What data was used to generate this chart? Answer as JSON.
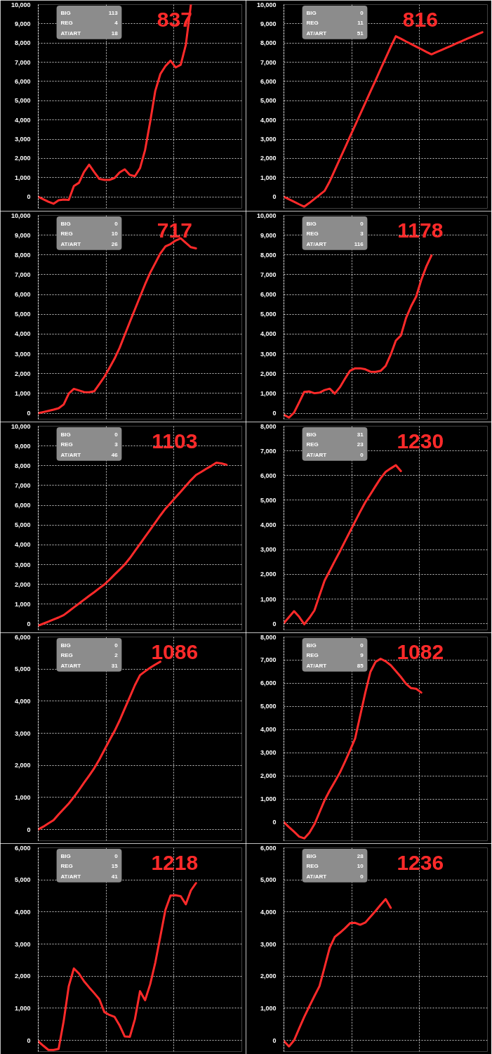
{
  "chart_data": [
    {
      "type": "line",
      "title": "837",
      "annotations": [
        "BIG",
        "113",
        "REG",
        "4",
        "AT/ART",
        "18"
      ],
      "categories": [
        null,
        null,
        null,
        null,
        null,
        null,
        null,
        null,
        null,
        null,
        null,
        null,
        null,
        null,
        null,
        null,
        null,
        null,
        null,
        null,
        null,
        null,
        null,
        null,
        null,
        null,
        null,
        null,
        null,
        null,
        null,
        null,
        null,
        null,
        null,
        null,
        null,
        null,
        null,
        null,
        null
      ],
      "ylim": [
        -600,
        10000
      ],
      "yticks": [
        0,
        {
          "value": 1000,
          "label": "1,000"
        },
        {
          "value": 2000,
          "label": "2,000"
        },
        {
          "value": 3000,
          "label": "3,000"
        },
        {
          "value": 4000,
          "label": "4,000"
        },
        {
          "value": 5000,
          "label": "5,000"
        },
        {
          "value": 6000,
          "label": "6,000"
        },
        {
          "value": 7000,
          "label": "7,000"
        },
        {
          "value": 8000,
          "label": "8,000"
        },
        {
          "value": 9000,
          "label": "9,000"
        },
        {
          "value": 10000,
          "label": "10,000"
        }
      ],
      "grid": true,
      "tick_labels": "y",
      "series": [
        {
          "color": "#ff2a2a",
          "values": [
            0,
            -130,
            -260,
            -360,
            -180,
            -140,
            -160,
            560,
            730,
            1300,
            1670,
            1290,
            930,
            880,
            880,
            980,
            1270,
            1430,
            1140,
            1070,
            1490,
            2440,
            3910,
            5510,
            6390,
            6800,
            7080,
            6730,
            6870,
            7900,
            10000,
            null,
            null,
            null,
            null,
            null,
            null,
            null,
            null,
            null,
            null
          ]
        }
      ]
    },
    {
      "type": "line",
      "title": "816",
      "annotations": [
        "BIG",
        "0",
        "REG",
        "11",
        "AT/ART",
        "51"
      ],
      "categories": [
        null,
        null,
        null,
        null,
        null,
        null,
        null,
        null,
        null,
        null,
        null,
        null,
        null,
        null,
        null,
        null,
        null,
        null,
        null,
        null,
        null,
        null,
        null,
        null,
        null,
        null,
        null,
        null,
        null,
        null,
        null,
        null,
        null,
        null,
        null,
        null,
        null,
        null,
        null,
        null,
        null
      ],
      "ylim": [
        -600,
        10000
      ],
      "yticks": [
        0,
        {
          "value": 1000,
          "label": "1,000"
        },
        {
          "value": 2000,
          "label": "2,000"
        },
        {
          "value": 3000,
          "label": "3,000"
        },
        {
          "value": 4000,
          "label": "4,000"
        },
        {
          "value": 5000,
          "label": "5,000"
        },
        {
          "value": 6000,
          "label": "6,000"
        },
        {
          "value": 7000,
          "label": "7,000"
        },
        {
          "value": 8000,
          "label": "8,000"
        },
        {
          "value": 9000,
          "label": "9,000"
        },
        {
          "value": 10000,
          "label": "10,000"
        }
      ],
      "grid": true,
      "tick_labels": "y",
      "series": [
        {
          "color": "#ff2a2a",
          "values": [
            0,
            -130,
            -260,
            -390,
            -510,
            -320,
            -110,
            100,
            310,
            800,
            1390,
            1970,
            2550,
            3140,
            3720,
            4300,
            4890,
            5470,
            6050,
            6640,
            7220,
            7800,
            8350,
            8220,
            8080,
            7950,
            7810,
            7680,
            7540,
            7410,
            7530,
            7640,
            7760,
            7870,
            7990,
            8100,
            8220,
            8330,
            8450,
            8560,
            null
          ]
        }
      ]
    },
    {
      "type": "line",
      "title": "717",
      "annotations": [
        "BIG",
        "0",
        "REG",
        "10",
        "AT/ART",
        "26"
      ],
      "categories": [
        null,
        null,
        null,
        null,
        null,
        null,
        null,
        null,
        null,
        null,
        null,
        null,
        null,
        null,
        null,
        null,
        null,
        null,
        null,
        null,
        null,
        null,
        null,
        null,
        null,
        null,
        null,
        null,
        null,
        null,
        null,
        null,
        null,
        null,
        null,
        null,
        null,
        null,
        null,
        null,
        null
      ],
      "ylim": [
        -300,
        10000
      ],
      "yticks": [
        0,
        {
          "value": 1000,
          "label": "1,000"
        },
        {
          "value": 2000,
          "label": "2,000"
        },
        {
          "value": 3000,
          "label": "3,000"
        },
        {
          "value": 4000,
          "label": "4,000"
        },
        {
          "value": 5000,
          "label": "5,000"
        },
        {
          "value": 6000,
          "label": "6,000"
        },
        {
          "value": 7000,
          "label": "7,000"
        },
        {
          "value": 8000,
          "label": "8,000"
        },
        {
          "value": 9000,
          "label": "9,000"
        },
        {
          "value": 10000,
          "label": "10,000"
        }
      ],
      "grid": true,
      "tick_labels": "y",
      "series": [
        {
          "color": "#ff2a2a",
          "values": [
            0,
            60,
            120,
            180,
            250,
            440,
            990,
            1230,
            1150,
            1070,
            1060,
            1110,
            1470,
            1840,
            2290,
            2760,
            3310,
            3960,
            4610,
            5250,
            5890,
            6520,
            7100,
            7590,
            8080,
            8430,
            8550,
            8730,
            8840,
            8610,
            8390,
            8330,
            null,
            null,
            null,
            null,
            null,
            null,
            null,
            null,
            null
          ]
        }
      ]
    },
    {
      "type": "line",
      "title": "1178",
      "annotations": [
        "BIG",
        "0",
        "REG",
        "3",
        "AT/ART",
        "116"
      ],
      "categories": [
        null,
        null,
        null,
        null,
        null,
        null,
        null,
        null,
        null,
        null,
        null,
        null,
        null,
        null,
        null,
        null,
        null,
        null,
        null,
        null,
        null,
        null,
        null,
        null,
        null,
        null,
        null,
        null,
        null,
        null,
        null,
        null,
        null,
        null,
        null,
        null,
        null,
        null,
        null,
        null,
        null
      ],
      "ylim": [
        -300,
        10000
      ],
      "yticks": [
        0,
        {
          "value": 1000,
          "label": "1,000"
        },
        {
          "value": 2000,
          "label": "2,000"
        },
        {
          "value": 3000,
          "label": "3,000"
        },
        {
          "value": 4000,
          "label": "4,000"
        },
        {
          "value": 5000,
          "label": "5,000"
        },
        {
          "value": 6000,
          "label": "6,000"
        },
        {
          "value": 7000,
          "label": "7,000"
        },
        {
          "value": 8000,
          "label": "8,000"
        },
        {
          "value": 9000,
          "label": "9,000"
        },
        {
          "value": 10000,
          "label": "10,000"
        }
      ],
      "grid": true,
      "tick_labels": "y",
      "series": [
        {
          "color": "#ff2a2a",
          "values": [
            -80,
            -220,
            30,
            550,
            1080,
            1100,
            1010,
            1040,
            1170,
            1240,
            990,
            1310,
            1740,
            2150,
            2270,
            2270,
            2220,
            2100,
            2090,
            2140,
            2390,
            2970,
            3670,
            3930,
            4810,
            5410,
            5900,
            6740,
            7420,
            7970,
            null,
            null,
            null,
            null,
            null,
            null,
            null,
            null,
            null,
            null,
            null
          ]
        }
      ]
    },
    {
      "type": "line",
      "title": "1103",
      "annotations": [
        "BIG",
        "0",
        "REG",
        "3",
        "AT/ART",
        "46"
      ],
      "categories": [
        null,
        null,
        null,
        null,
        null,
        null,
        null,
        null,
        null,
        null,
        null,
        null,
        null,
        null,
        null,
        null,
        null,
        null,
        null,
        null,
        null,
        null,
        null,
        null,
        null,
        null,
        null,
        null,
        null,
        null,
        null,
        null,
        null,
        null,
        null,
        null,
        null,
        null,
        null,
        null,
        null
      ],
      "ylim": [
        -300,
        10000
      ],
      "yticks": [
        0,
        {
          "value": 1000,
          "label": "1,000"
        },
        {
          "value": 2000,
          "label": "2,000"
        },
        {
          "value": 3000,
          "label": "3,000"
        },
        {
          "value": 4000,
          "label": "4,000"
        },
        {
          "value": 5000,
          "label": "5,000"
        },
        {
          "value": 6000,
          "label": "6,000"
        },
        {
          "value": 7000,
          "label": "7,000"
        },
        {
          "value": 8000,
          "label": "8,000"
        },
        {
          "value": 9000,
          "label": "9,000"
        },
        {
          "value": 10000,
          "label": "10,000"
        }
      ],
      "grid": true,
      "tick_labels": "y",
      "series": [
        {
          "color": "#ff2a2a",
          "values": [
            -80,
            20,
            120,
            230,
            330,
            450,
            640,
            840,
            1030,
            1230,
            1420,
            1610,
            1810,
            2000,
            2240,
            2500,
            2750,
            3010,
            3330,
            3690,
            4050,
            4410,
            4770,
            5130,
            5490,
            5830,
            6110,
            6400,
            6690,
            6980,
            7270,
            7530,
            7680,
            7840,
            7990,
            8150,
            8120,
            8050,
            null,
            null,
            null
          ]
        }
      ]
    },
    {
      "type": "line",
      "title": "1230",
      "annotations": [
        "BIG",
        "31",
        "REG",
        "23",
        "AT/ART",
        "0"
      ],
      "categories": [
        null,
        null,
        null,
        null,
        null,
        null,
        null,
        null,
        null,
        null,
        null,
        null,
        null,
        null,
        null,
        null,
        null,
        null,
        null,
        null,
        null,
        null,
        null,
        null,
        null,
        null,
        null,
        null,
        null,
        null,
        null,
        null,
        null,
        null,
        null,
        null,
        null,
        null,
        null,
        null,
        null
      ],
      "ylim": [
        -250,
        8000
      ],
      "yticks": [
        0,
        {
          "value": 1000,
          "label": "1,000"
        },
        {
          "value": 2000,
          "label": "2,000"
        },
        {
          "value": 3000,
          "label": "3,000"
        },
        {
          "value": 4000,
          "label": "4,000"
        },
        {
          "value": 5000,
          "label": "5,000"
        },
        {
          "value": 6000,
          "label": "6,000"
        },
        {
          "value": 7000,
          "label": "7,000"
        },
        {
          "value": 8000,
          "label": "8,000"
        }
      ],
      "grid": true,
      "tick_labels": "y",
      "series": [
        {
          "color": "#ff2a2a",
          "values": [
            30,
            270,
            510,
            280,
            -20,
            240,
            540,
            1150,
            1750,
            2140,
            2540,
            2930,
            3340,
            3740,
            4140,
            4540,
            4920,
            5240,
            5570,
            5890,
            6150,
            6290,
            6420,
            6180,
            null,
            null,
            null,
            null,
            null,
            null,
            null,
            null,
            null,
            null,
            null,
            null,
            null,
            null,
            null,
            null,
            null
          ]
        }
      ]
    },
    {
      "type": "line",
      "title": "1086",
      "annotations": [
        "BIG",
        "0",
        "REG",
        "2",
        "AT/ART",
        "31"
      ],
      "categories": [
        null,
        null,
        null,
        null,
        null,
        null,
        null,
        null,
        null,
        null,
        null,
        null,
        null,
        null,
        null,
        null,
        null,
        null,
        null,
        null,
        null,
        null,
        null,
        null,
        null,
        null,
        null,
        null,
        null,
        null,
        null,
        null,
        null,
        null,
        null,
        null,
        null,
        null,
        null,
        null,
        null
      ],
      "ylim": [
        -350,
        6000
      ],
      "yticks": [
        0,
        {
          "value": 1000,
          "label": "1,000"
        },
        {
          "value": 2000,
          "label": "2,000"
        },
        {
          "value": 3000,
          "label": "3,000"
        },
        {
          "value": 4000,
          "label": "4,000"
        },
        {
          "value": 5000,
          "label": "5,000"
        },
        {
          "value": 6000,
          "label": "6,000"
        }
      ],
      "grid": true,
      "tick_labels": "y",
      "series": [
        {
          "color": "#ff2a2a",
          "values": [
            0,
            90,
            190,
            290,
            470,
            640,
            810,
            1010,
            1230,
            1460,
            1680,
            1910,
            2180,
            2480,
            2780,
            3070,
            3400,
            3770,
            4130,
            4500,
            4810,
            4930,
            5040,
            5140,
            5230,
            null,
            null,
            null,
            null,
            null,
            null,
            null,
            null,
            null,
            null,
            null,
            null,
            null,
            null,
            null,
            null
          ]
        }
      ]
    },
    {
      "type": "line",
      "title": "1082",
      "annotations": [
        "BIG",
        "0",
        "REG",
        "9",
        "AT/ART",
        "85"
      ],
      "categories": [
        null,
        null,
        null,
        null,
        null,
        null,
        null,
        null,
        null,
        null,
        null,
        null,
        null,
        null,
        null,
        null,
        null,
        null,
        null,
        null,
        null,
        null,
        null,
        null,
        null,
        null,
        null,
        null,
        null,
        null,
        null,
        null,
        null,
        null,
        null,
        null,
        null,
        null,
        null,
        null,
        null
      ],
      "ylim": [
        -800,
        8000
      ],
      "yticks": [
        0,
        {
          "value": 1000,
          "label": "1,000"
        },
        {
          "value": 2000,
          "label": "2,000"
        },
        {
          "value": 3000,
          "label": "3,000"
        },
        {
          "value": 4000,
          "label": "4,000"
        },
        {
          "value": 5000,
          "label": "5,000"
        },
        {
          "value": 6000,
          "label": "6,000"
        },
        {
          "value": 7000,
          "label": "7,000"
        },
        {
          "value": 8000,
          "label": "8,000"
        }
      ],
      "grid": true,
      "tick_labels": "y",
      "series": [
        {
          "color": "#ff2a2a",
          "values": [
            0,
            -210,
            -410,
            -620,
            -700,
            -460,
            -90,
            430,
            950,
            1370,
            1750,
            2140,
            2610,
            3100,
            3620,
            4610,
            5600,
            6490,
            6920,
            7060,
            6950,
            6780,
            6530,
            6270,
            5980,
            5790,
            5760,
            5600,
            null,
            null,
            null,
            null,
            null,
            null,
            null,
            null,
            null,
            null,
            null,
            null,
            null
          ]
        }
      ]
    },
    {
      "type": "line",
      "title": "1218",
      "annotations": [
        "BIG",
        "0",
        "REG",
        "15",
        "AT/ART",
        "41"
      ],
      "categories": [
        null,
        null,
        null,
        null,
        null,
        null,
        null,
        null,
        null,
        null,
        null,
        null,
        null,
        null,
        null,
        null,
        null,
        null,
        null,
        null,
        null,
        null,
        null,
        null,
        null,
        null,
        null,
        null,
        null,
        null,
        null,
        null,
        null,
        null,
        null,
        null,
        null,
        null,
        null,
        null,
        null
      ],
      "ylim": [
        -350,
        6000
      ],
      "yticks": [
        0,
        {
          "value": 1000,
          "label": "1,000"
        },
        {
          "value": 2000,
          "label": "2,000"
        },
        {
          "value": 3000,
          "label": "3,000"
        },
        {
          "value": 4000,
          "label": "4,000"
        },
        {
          "value": 5000,
          "label": "5,000"
        },
        {
          "value": 6000,
          "label": "6,000"
        }
      ],
      "grid": true,
      "tick_labels": "y",
      "series": [
        {
          "color": "#ff2a2a",
          "values": [
            -30,
            -170,
            -300,
            -300,
            -270,
            600,
            1690,
            2240,
            2080,
            1840,
            1650,
            1470,
            1280,
            880,
            790,
            730,
            460,
            120,
            110,
            660,
            1530,
            1250,
            1750,
            2420,
            3240,
            4070,
            4510,
            4520,
            4490,
            4240,
            4670,
            4900,
            null,
            null,
            null,
            null,
            null,
            null,
            null,
            null,
            null
          ]
        }
      ]
    },
    {
      "type": "line",
      "title": "1236",
      "annotations": [
        "BIG",
        "28",
        "REG",
        "10",
        "AT/ART",
        "0"
      ],
      "categories": [
        null,
        null,
        null,
        null,
        null,
        null,
        null,
        null,
        null,
        null,
        null,
        null,
        null,
        null,
        null,
        null,
        null,
        null,
        null,
        null,
        null,
        null,
        null,
        null,
        null,
        null,
        null,
        null,
        null,
        null,
        null,
        null,
        null,
        null,
        null,
        null,
        null,
        null,
        null,
        null,
        null
      ],
      "ylim": [
        -350,
        6000
      ],
      "yticks": [
        0,
        {
          "value": 1000,
          "label": "1,000"
        },
        {
          "value": 2000,
          "label": "2,000"
        },
        {
          "value": 3000,
          "label": "3,000"
        },
        {
          "value": 4000,
          "label": "4,000"
        },
        {
          "value": 5000,
          "label": "5,000"
        },
        {
          "value": 6000,
          "label": "6,000"
        }
      ],
      "grid": true,
      "tick_labels": "y",
      "series": [
        {
          "color": "#ff2a2a",
          "values": [
            -20,
            -190,
            0,
            370,
            730,
            1060,
            1380,
            1690,
            2280,
            2880,
            3220,
            3350,
            3490,
            3650,
            3660,
            3600,
            3670,
            3850,
            4030,
            4220,
            4400,
            4130,
            null,
            null,
            null,
            null,
            null,
            null,
            null,
            null,
            null,
            null,
            null,
            null,
            null,
            null,
            null,
            null,
            null,
            null,
            null
          ]
        }
      ]
    }
  ]
}
